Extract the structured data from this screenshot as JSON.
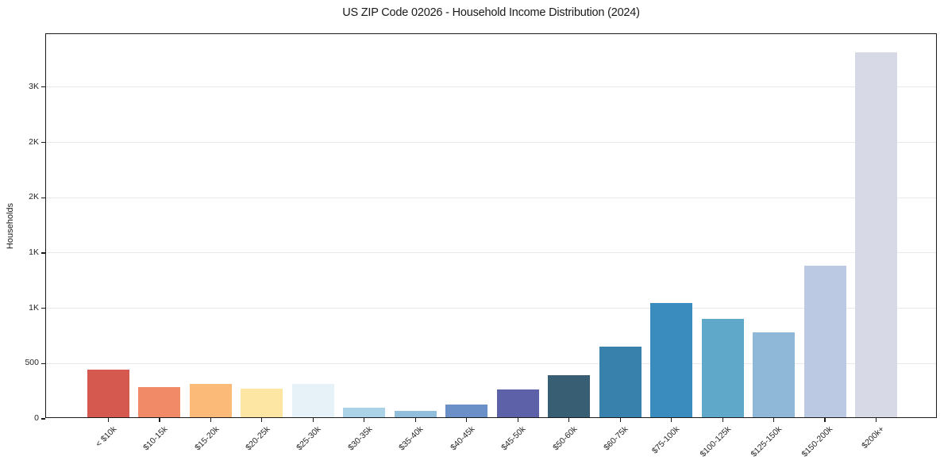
{
  "chart_data": {
    "type": "bar",
    "title": "US ZIP Code 02026 - Household Income Distribution (2024)",
    "xlabel": "",
    "ylabel": "Households",
    "ylim": [
      0,
      3480
    ],
    "grid": "horizontal",
    "legend": "none",
    "categories": [
      "< $10k",
      "$10-15k",
      "$15-20k",
      "$20-25k",
      "$25-30k",
      "$30-35k",
      "$35-40k",
      "$40-45k",
      "$45-50k",
      "$50-60k",
      "$60-75k",
      "$75-100k",
      "$100-125k",
      "$125-150k",
      "$150-200k",
      "$200k+"
    ],
    "values": [
      430,
      270,
      300,
      255,
      305,
      85,
      60,
      115,
      250,
      380,
      640,
      1030,
      890,
      765,
      1370,
      3300
    ],
    "bar_colors": [
      "#d6594f",
      "#f18b67",
      "#fcba79",
      "#fde5a3",
      "#e6f2f7",
      "#abd2e6",
      "#90bedb",
      "#6b90c8",
      "#5c61a8",
      "#385e73",
      "#3781ac",
      "#3a8cbe",
      "#5fa8ca",
      "#8fb7d8",
      "#bbc9e2",
      "#d8d9e7"
    ],
    "yticks": [
      {
        "value": 0,
        "label": "0"
      },
      {
        "value": 500,
        "label": "500"
      },
      {
        "value": 1000,
        "label": "1K"
      },
      {
        "value": 1500,
        "label": "1K"
      },
      {
        "value": 2000,
        "label": "2K"
      },
      {
        "value": 2500,
        "label": "2K"
      },
      {
        "value": 3000,
        "label": "3K"
      }
    ],
    "colors": {
      "background": "#ffffff",
      "spine": "#1b1b1b",
      "gridline": "#e9e9ec",
      "text": "#262626"
    }
  }
}
